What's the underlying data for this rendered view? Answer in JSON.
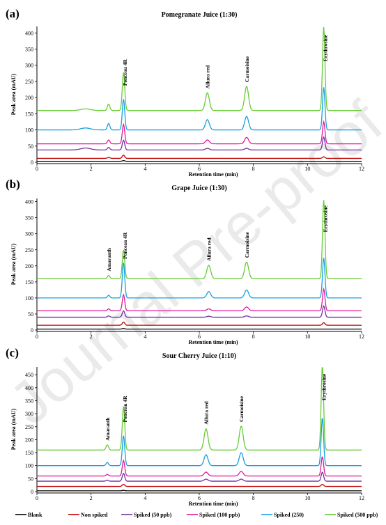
{
  "watermark": "Journal Pre-proof",
  "legend": [
    {
      "label": "Blank",
      "color": "#000000"
    },
    {
      "label": "Non spiked",
      "color": "#c00000"
    },
    {
      "label": "Spiked (50 ppb)",
      "color": "#7030a0"
    },
    {
      "label": "Spiked (100 ppb)",
      "color": "#e0189a"
    },
    {
      "label": "Spiked (250)",
      "color": "#14a0e0"
    },
    {
      "label": "Spiked (500 ppb)",
      "color": "#66cc33"
    }
  ],
  "chart_data": [
    {
      "type": "line",
      "panel_letter": "(a)",
      "title": "Pomegranate Juice (1:30)",
      "xlabel": "Retention time (min)",
      "ylabel": "Peak area (mAU)",
      "xlim": [
        0,
        12
      ],
      "ylim": [
        0,
        420
      ],
      "xticks": [
        0,
        2,
        4,
        6,
        8,
        10,
        12
      ],
      "yticks": [
        0,
        50,
        100,
        150,
        200,
        250,
        300,
        350,
        400
      ],
      "peak_labels": [
        {
          "text": "Ponceau 4R",
          "x": 3.25
        },
        {
          "text": "Allura red",
          "x": 6.3
        },
        {
          "text": "Carmoisine",
          "x": 7.75
        },
        {
          "text": "Erythrosine",
          "x": 10.65
        }
      ],
      "series": [
        {
          "name": "Blank",
          "baseline": 3,
          "peaks": [
            {
              "x": 3.2,
              "h": 2
            }
          ]
        },
        {
          "name": "Non spiked",
          "baseline": 12,
          "peaks": [
            {
              "x": 2.65,
              "h": 3
            },
            {
              "x": 3.2,
              "h": 10
            },
            {
              "x": 10.6,
              "h": 5
            }
          ]
        },
        {
          "name": "Spiked (50 ppb)",
          "baseline": 38,
          "peaks": [
            {
              "x": 1.8,
              "h": 6
            },
            {
              "x": 2.65,
              "h": 8
            },
            {
              "x": 3.2,
              "h": 30
            },
            {
              "x": 6.3,
              "h": 5
            },
            {
              "x": 7.75,
              "h": 5
            },
            {
              "x": 10.6,
              "h": 40
            }
          ]
        },
        {
          "name": "Spiked (100 ppb)",
          "baseline": 57,
          "peaks": [
            {
              "x": 2.65,
              "h": 12
            },
            {
              "x": 3.2,
              "h": 60
            },
            {
              "x": 6.3,
              "h": 12
            },
            {
              "x": 7.75,
              "h": 20
            },
            {
              "x": 10.6,
              "h": 68
            }
          ]
        },
        {
          "name": "Spiked (250)",
          "baseline": 100,
          "peaks": [
            {
              "x": 1.8,
              "h": 6
            },
            {
              "x": 2.65,
              "h": 20
            },
            {
              "x": 3.2,
              "h": 95
            },
            {
              "x": 6.3,
              "h": 32
            },
            {
              "x": 7.75,
              "h": 42
            },
            {
              "x": 10.6,
              "h": 132
            }
          ]
        },
        {
          "name": "Spiked (500 ppb)",
          "baseline": 160,
          "peaks": [
            {
              "x": 1.8,
              "h": 5
            },
            {
              "x": 2.65,
              "h": 20
            },
            {
              "x": 3.2,
              "h": 118
            },
            {
              "x": 6.3,
              "h": 55
            },
            {
              "x": 7.75,
              "h": 75
            },
            {
              "x": 10.6,
              "h": 258
            }
          ]
        }
      ]
    },
    {
      "type": "line",
      "panel_letter": "(b)",
      "title": "Grape Juice (1:30)",
      "xlabel": "Retention time (min)",
      "ylabel": "Peak area (mAU)",
      "xlim": [
        0,
        12
      ],
      "ylim": [
        0,
        410
      ],
      "xticks": [
        0,
        2,
        4,
        6,
        8,
        10,
        12
      ],
      "yticks": [
        0,
        50,
        100,
        150,
        200,
        250,
        300,
        350,
        400
      ],
      "peak_labels": [
        {
          "text": "Amaranth",
          "x": 2.65
        },
        {
          "text": "Ponceau 4R",
          "x": 3.25
        },
        {
          "text": "Allura red",
          "x": 6.35
        },
        {
          "text": "Carmoisine",
          "x": 7.75
        },
        {
          "text": "Erythrosine",
          "x": 10.65
        }
      ],
      "series": [
        {
          "name": "Blank",
          "baseline": 3,
          "peaks": [
            {
              "x": 3.2,
              "h": 2
            }
          ]
        },
        {
          "name": "Non spiked",
          "baseline": 15,
          "peaks": [
            {
              "x": 3.2,
              "h": 10
            },
            {
              "x": 10.6,
              "h": 8
            }
          ]
        },
        {
          "name": "Spiked (50 ppb)",
          "baseline": 40,
          "peaks": [
            {
              "x": 2.65,
              "h": 4
            },
            {
              "x": 3.2,
              "h": 20
            },
            {
              "x": 6.35,
              "h": 3
            },
            {
              "x": 7.75,
              "h": 4
            },
            {
              "x": 10.6,
              "h": 35
            }
          ]
        },
        {
          "name": "Spiked (100 ppb)",
          "baseline": 60,
          "peaks": [
            {
              "x": 2.65,
              "h": 6
            },
            {
              "x": 3.2,
              "h": 50
            },
            {
              "x": 6.35,
              "h": 6
            },
            {
              "x": 7.75,
              "h": 12
            },
            {
              "x": 10.6,
              "h": 68
            }
          ]
        },
        {
          "name": "Spiked (250)",
          "baseline": 100,
          "peaks": [
            {
              "x": 2.65,
              "h": 8
            },
            {
              "x": 3.2,
              "h": 110
            },
            {
              "x": 6.35,
              "h": 20
            },
            {
              "x": 7.75,
              "h": 25
            },
            {
              "x": 10.6,
              "h": 125
            }
          ]
        },
        {
          "name": "Spiked (500 ppb)",
          "baseline": 160,
          "peaks": [
            {
              "x": 2.65,
              "h": 10
            },
            {
              "x": 3.2,
              "h": 90
            },
            {
              "x": 6.35,
              "h": 42
            },
            {
              "x": 7.75,
              "h": 52
            },
            {
              "x": 10.6,
              "h": 245
            }
          ]
        }
      ]
    },
    {
      "type": "line",
      "panel_letter": "(c)",
      "title": "Sour Cherry Juice (1:10)",
      "xlabel": "Retention time (min)",
      "ylabel": "Peak area (mAU)",
      "xlim": [
        0,
        12
      ],
      "ylim": [
        0,
        480
      ],
      "xticks": [
        0,
        2,
        4,
        6,
        8,
        10,
        12
      ],
      "yticks": [
        0,
        50,
        100,
        150,
        200,
        250,
        300,
        350,
        400,
        450
      ],
      "peak_labels": [
        {
          "text": "Amaranth",
          "x": 2.6
        },
        {
          "text": "Ponceau 4R",
          "x": 3.25
        },
        {
          "text": "Allura red",
          "x": 6.25
        },
        {
          "text": "Carmoisine",
          "x": 7.55
        },
        {
          "text": "Erythrosine",
          "x": 10.6
        }
      ],
      "series": [
        {
          "name": "Blank",
          "baseline": 3,
          "peaks": [
            {
              "x": 3.2,
              "h": 2
            }
          ]
        },
        {
          "name": "Non spiked",
          "baseline": 20,
          "peaks": [
            {
              "x": 3.2,
              "h": 8
            },
            {
              "x": 10.55,
              "h": 8
            }
          ]
        },
        {
          "name": "Spiked (50 ppb)",
          "baseline": 40,
          "peaks": [
            {
              "x": 2.6,
              "h": 4
            },
            {
              "x": 3.2,
              "h": 30
            },
            {
              "x": 6.25,
              "h": 8
            },
            {
              "x": 7.55,
              "h": 8
            },
            {
              "x": 10.55,
              "h": 35
            }
          ]
        },
        {
          "name": "Spiked (100 ppb)",
          "baseline": 60,
          "peaks": [
            {
              "x": 2.6,
              "h": 6
            },
            {
              "x": 3.2,
              "h": 60
            },
            {
              "x": 6.25,
              "h": 15
            },
            {
              "x": 7.55,
              "h": 18
            },
            {
              "x": 10.55,
              "h": 75
            }
          ]
        },
        {
          "name": "Spiked (250)",
          "baseline": 100,
          "peaks": [
            {
              "x": 2.6,
              "h": 12
            },
            {
              "x": 3.2,
              "h": 115
            },
            {
              "x": 6.25,
              "h": 42
            },
            {
              "x": 7.55,
              "h": 50
            },
            {
              "x": 10.55,
              "h": 185
            }
          ]
        },
        {
          "name": "Spiked (500 ppb)",
          "baseline": 160,
          "peaks": [
            {
              "x": 2.6,
              "h": 20
            },
            {
              "x": 3.2,
              "h": 168
            },
            {
              "x": 6.25,
              "h": 82
            },
            {
              "x": 7.55,
              "h": 92
            },
            {
              "x": 10.55,
              "h": 325
            }
          ]
        }
      ]
    }
  ]
}
